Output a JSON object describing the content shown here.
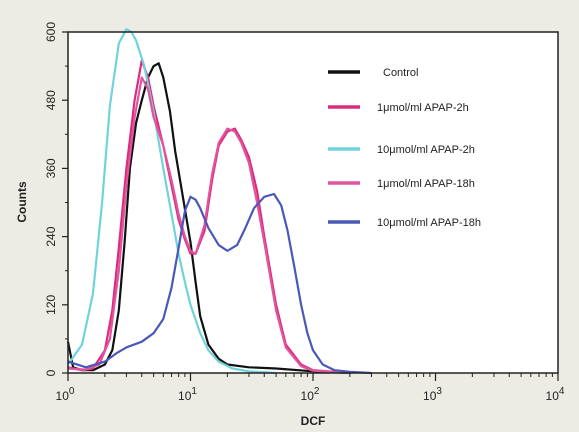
{
  "chart_data": {
    "type": "line",
    "xlabel": "DCF",
    "ylabel": "Counts",
    "x_scale": "log",
    "xlim": [
      1,
      10000
    ],
    "ylim": [
      0,
      600
    ],
    "x_ticks": [
      {
        "value": 1,
        "base": "10",
        "exp": "0"
      },
      {
        "value": 10,
        "base": "10",
        "exp": "1"
      },
      {
        "value": 100,
        "base": "10",
        "exp": "2"
      },
      {
        "value": 1000,
        "base": "10",
        "exp": "3"
      },
      {
        "value": 10000,
        "base": "10",
        "exp": "4"
      }
    ],
    "y_ticks": [
      "0",
      "120",
      "240",
      "360",
      "480",
      "600"
    ],
    "grid": false,
    "legend_position": "top-right",
    "series": [
      {
        "name": "Control",
        "color": "#111111",
        "points": [
          [
            1.0,
            55
          ],
          [
            1.1,
            10
          ],
          [
            1.3,
            5
          ],
          [
            1.6,
            5
          ],
          [
            2.0,
            15
          ],
          [
            2.3,
            40
          ],
          [
            2.6,
            110
          ],
          [
            2.9,
            230
          ],
          [
            3.2,
            360
          ],
          [
            3.6,
            440
          ],
          [
            4.0,
            480
          ],
          [
            4.5,
            520
          ],
          [
            5.0,
            540
          ],
          [
            5.5,
            545
          ],
          [
            6.0,
            520
          ],
          [
            6.8,
            460
          ],
          [
            7.5,
            390
          ],
          [
            8.5,
            320
          ],
          [
            10,
            230
          ],
          [
            11,
            160
          ],
          [
            12,
            100
          ],
          [
            14,
            50
          ],
          [
            17,
            25
          ],
          [
            20,
            15
          ],
          [
            30,
            10
          ],
          [
            50,
            8
          ],
          [
            100,
            3
          ],
          [
            200,
            0
          ]
        ]
      },
      {
        "name": "1μmol/ml APAP-2h",
        "color": "#dd2b7c",
        "points": [
          [
            1.0,
            10
          ],
          [
            1.3,
            5
          ],
          [
            1.6,
            8
          ],
          [
            2.0,
            40
          ],
          [
            2.3,
            110
          ],
          [
            2.6,
            220
          ],
          [
            3.0,
            360
          ],
          [
            3.5,
            480
          ],
          [
            4.0,
            550
          ],
          [
            4.5,
            520
          ],
          [
            5.0,
            470
          ],
          [
            6.0,
            400
          ],
          [
            7.0,
            330
          ],
          [
            8.0,
            270
          ],
          [
            9.0,
            235
          ],
          [
            10,
            210
          ],
          [
            11,
            210
          ],
          [
            13,
            250
          ],
          [
            15,
            340
          ],
          [
            17,
            400
          ],
          [
            20,
            425
          ],
          [
            23,
            430
          ],
          [
            26,
            410
          ],
          [
            30,
            380
          ],
          [
            35,
            320
          ],
          [
            40,
            240
          ],
          [
            50,
            120
          ],
          [
            60,
            50
          ],
          [
            80,
            15
          ],
          [
            100,
            5
          ],
          [
            150,
            2
          ],
          [
            200,
            0
          ]
        ]
      },
      {
        "name": "10μmol/ml APAP-2h",
        "color": "#70d3dc",
        "points": [
          [
            1.0,
            15
          ],
          [
            1.3,
            50
          ],
          [
            1.6,
            140
          ],
          [
            1.9,
            300
          ],
          [
            2.2,
            470
          ],
          [
            2.6,
            580
          ],
          [
            3.0,
            605
          ],
          [
            3.3,
            600
          ],
          [
            3.6,
            585
          ],
          [
            4.2,
            540
          ],
          [
            5.0,
            460
          ],
          [
            6.0,
            360
          ],
          [
            7.0,
            280
          ],
          [
            8.0,
            210
          ],
          [
            9.0,
            160
          ],
          [
            10,
            120
          ],
          [
            12,
            70
          ],
          [
            14,
            40
          ],
          [
            17,
            20
          ],
          [
            22,
            8
          ],
          [
            30,
            3
          ],
          [
            50,
            0
          ]
        ]
      },
      {
        "name": "1μmol/ml APAP-18h",
        "color": "#e0559f",
        "points": [
          [
            1.0,
            8
          ],
          [
            1.4,
            6
          ],
          [
            1.8,
            15
          ],
          [
            2.2,
            60
          ],
          [
            2.6,
            180
          ],
          [
            3.0,
            330
          ],
          [
            3.5,
            450
          ],
          [
            4.0,
            520
          ],
          [
            4.5,
            500
          ],
          [
            5.0,
            450
          ],
          [
            6.0,
            400
          ],
          [
            7.0,
            340
          ],
          [
            8.0,
            280
          ],
          [
            9.0,
            240
          ],
          [
            10,
            215
          ],
          [
            11,
            210
          ],
          [
            13,
            260
          ],
          [
            15,
            350
          ],
          [
            17,
            405
          ],
          [
            20,
            430
          ],
          [
            23,
            425
          ],
          [
            26,
            405
          ],
          [
            30,
            370
          ],
          [
            35,
            300
          ],
          [
            40,
            230
          ],
          [
            50,
            110
          ],
          [
            60,
            45
          ],
          [
            80,
            12
          ],
          [
            100,
            4
          ],
          [
            200,
            0
          ]
        ]
      },
      {
        "name": "10μmol/ml APAP-18h",
        "color": "#4a59b8",
        "points": [
          [
            1.0,
            20
          ],
          [
            1.4,
            10
          ],
          [
            2.0,
            20
          ],
          [
            2.5,
            35
          ],
          [
            3.0,
            45
          ],
          [
            4.0,
            55
          ],
          [
            5.0,
            70
          ],
          [
            6.0,
            95
          ],
          [
            7.0,
            150
          ],
          [
            8.0,
            220
          ],
          [
            9.0,
            285
          ],
          [
            10,
            310
          ],
          [
            11,
            305
          ],
          [
            12,
            290
          ],
          [
            14,
            255
          ],
          [
            17,
            225
          ],
          [
            20,
            215
          ],
          [
            24,
            225
          ],
          [
            28,
            255
          ],
          [
            33,
            290
          ],
          [
            40,
            310
          ],
          [
            48,
            315
          ],
          [
            55,
            295
          ],
          [
            62,
            250
          ],
          [
            70,
            190
          ],
          [
            80,
            120
          ],
          [
            90,
            70
          ],
          [
            100,
            40
          ],
          [
            120,
            15
          ],
          [
            150,
            5
          ],
          [
            200,
            2
          ],
          [
            300,
            0
          ]
        ]
      }
    ]
  }
}
